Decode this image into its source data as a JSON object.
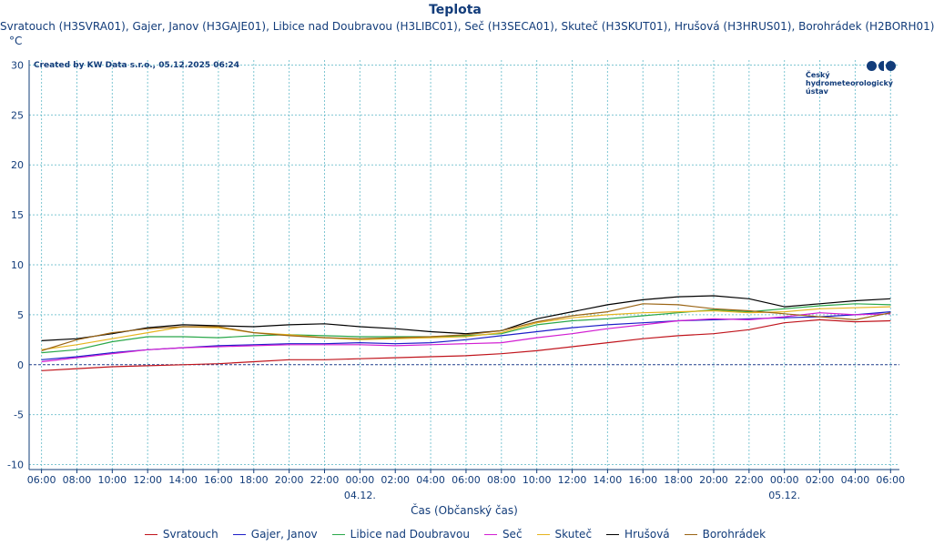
{
  "chart_data": {
    "type": "line",
    "title": "Teplota",
    "subtitle": "Svratouch (H3SVRA01), Gajer, Janov (H3GAJE01), Libice nad Doubravou (H3LIBC01), Seč (H3SECA01), Skuteč (H3SKUT01), Hrušová (H3HRUS01), Borohrádek (H2BORH01)",
    "ylabel": "°C",
    "xlabel": "Čas (Občanský čas)",
    "ylim": [
      -10.5,
      30.5
    ],
    "xlim": [
      -0.7,
      48.5
    ],
    "yticks": [
      30,
      25,
      20,
      15,
      10,
      5,
      0,
      -5,
      -10
    ],
    "xticks": [
      {
        "t": 0,
        "label": "06:00"
      },
      {
        "t": 2,
        "label": "08:00"
      },
      {
        "t": 4,
        "label": "10:00"
      },
      {
        "t": 6,
        "label": "12:00"
      },
      {
        "t": 8,
        "label": "14:00"
      },
      {
        "t": 10,
        "label": "16:00"
      },
      {
        "t": 12,
        "label": "18:00"
      },
      {
        "t": 14,
        "label": "20:00"
      },
      {
        "t": 16,
        "label": "22:00"
      },
      {
        "t": 18,
        "label": "00:00"
      },
      {
        "t": 20,
        "label": "02:00"
      },
      {
        "t": 22,
        "label": "04:00"
      },
      {
        "t": 24,
        "label": "06:00"
      },
      {
        "t": 26,
        "label": "08:00"
      },
      {
        "t": 28,
        "label": "10:00"
      },
      {
        "t": 30,
        "label": "12:00"
      },
      {
        "t": 32,
        "label": "14:00"
      },
      {
        "t": 34,
        "label": "16:00"
      },
      {
        "t": 36,
        "label": "18:00"
      },
      {
        "t": 38,
        "label": "20:00"
      },
      {
        "t": 40,
        "label": "22:00"
      },
      {
        "t": 42,
        "label": "00:00"
      },
      {
        "t": 44,
        "label": "02:00"
      },
      {
        "t": 46,
        "label": "04:00"
      },
      {
        "t": 48,
        "label": "06:00"
      }
    ],
    "date_labels": [
      {
        "t": 18,
        "label": "04.12."
      },
      {
        "t": 42,
        "label": "05.12."
      }
    ],
    "grid": true,
    "legend_position": "bottom",
    "zero_line": true,
    "series": [
      {
        "name": "Svratouch",
        "color": "#c0141c",
        "x": [
          0,
          2,
          4,
          6,
          8,
          10,
          12,
          14,
          16,
          18,
          20,
          22,
          24,
          26,
          28,
          30,
          32,
          34,
          36,
          38,
          40,
          42,
          44,
          46,
          48
        ],
        "y": [
          -0.6,
          -0.4,
          -0.2,
          -0.1,
          0.0,
          0.1,
          0.3,
          0.5,
          0.5,
          0.6,
          0.7,
          0.8,
          0.9,
          1.1,
          1.4,
          1.8,
          2.2,
          2.6,
          2.9,
          3.1,
          3.5,
          4.2,
          4.5,
          4.3,
          4.4
        ]
      },
      {
        "name": "Gajer, Janov",
        "color": "#1e1ec8",
        "x": [
          0,
          2,
          4,
          6,
          8,
          10,
          12,
          14,
          16,
          18,
          20,
          22,
          24,
          26,
          28,
          30,
          32,
          34,
          36,
          38,
          40,
          42,
          44,
          46,
          48
        ],
        "y": [
          0.5,
          0.8,
          1.2,
          1.5,
          1.7,
          1.9,
          2.0,
          2.1,
          2.1,
          2.2,
          2.1,
          2.2,
          2.5,
          2.9,
          3.3,
          3.7,
          4.0,
          4.2,
          4.4,
          4.5,
          4.6,
          4.7,
          4.8,
          5.0,
          5.3
        ]
      },
      {
        "name": "Libice nad Doubravou",
        "color": "#2aa84a",
        "x": [
          0,
          2,
          4,
          6,
          8,
          10,
          12,
          14,
          16,
          18,
          20,
          22,
          24,
          26,
          28,
          30,
          32,
          34,
          36,
          38,
          40,
          42,
          44,
          46,
          48
        ],
        "y": [
          1.2,
          1.5,
          2.3,
          2.8,
          2.8,
          2.7,
          2.9,
          3.0,
          2.9,
          2.8,
          2.8,
          2.8,
          2.9,
          3.1,
          4.0,
          4.4,
          4.6,
          4.9,
          5.2,
          5.5,
          5.3,
          5.6,
          5.9,
          6.1,
          6.0
        ]
      },
      {
        "name": "Seč",
        "color": "#d21ed2",
        "x": [
          0,
          2,
          4,
          6,
          8,
          10,
          12,
          14,
          16,
          18,
          20,
          22,
          24,
          26,
          28,
          30,
          32,
          34,
          36,
          38,
          40,
          42,
          44,
          46,
          48
        ],
        "y": [
          0.3,
          0.7,
          1.1,
          1.5,
          1.7,
          1.8,
          1.9,
          2.0,
          2.0,
          2.0,
          1.9,
          2.0,
          2.1,
          2.2,
          2.7,
          3.1,
          3.6,
          4.0,
          4.4,
          4.6,
          4.5,
          4.8,
          5.2,
          5.0,
          5.1
        ]
      },
      {
        "name": "Skuteč",
        "color": "#e6b41e",
        "x": [
          0,
          2,
          4,
          6,
          8,
          10,
          12,
          14,
          16,
          18,
          20,
          22,
          24,
          26,
          28,
          30,
          32,
          34,
          36,
          38,
          40,
          42,
          44,
          46,
          48
        ],
        "y": [
          1.5,
          2.0,
          2.6,
          3.2,
          3.8,
          3.7,
          3.2,
          3.0,
          2.7,
          2.5,
          2.6,
          2.7,
          2.8,
          3.2,
          4.2,
          4.7,
          5.0,
          5.2,
          5.3,
          5.4,
          5.2,
          5.3,
          5.6,
          5.7,
          5.8
        ]
      },
      {
        "name": "Hrušová",
        "color": "#000000",
        "x": [
          0,
          2,
          4,
          6,
          8,
          10,
          12,
          14,
          16,
          18,
          20,
          22,
          24,
          26,
          28,
          30,
          32,
          34,
          36,
          38,
          40,
          42,
          44,
          46,
          48
        ],
        "y": [
          2.4,
          2.6,
          3.1,
          3.7,
          4.0,
          3.9,
          3.8,
          4.0,
          4.1,
          3.8,
          3.6,
          3.3,
          3.1,
          3.4,
          4.6,
          5.3,
          6.0,
          6.5,
          6.8,
          6.9,
          6.6,
          5.8,
          6.1,
          6.4,
          6.6
        ]
      },
      {
        "name": "Borohrádek",
        "color": "#9a6414",
        "x": [
          0,
          2,
          4,
          6,
          8,
          10,
          12,
          14,
          16,
          18,
          20,
          22,
          24,
          26,
          28,
          30,
          32,
          34,
          36,
          38,
          40,
          42,
          44,
          46,
          48
        ],
        "y": [
          1.4,
          2.5,
          3.2,
          3.6,
          3.8,
          3.8,
          3.2,
          2.9,
          2.7,
          2.6,
          2.7,
          2.8,
          3.0,
          3.4,
          4.3,
          4.9,
          5.3,
          6.1,
          6.0,
          5.6,
          5.4,
          5.1,
          4.8,
          4.5,
          5.2
        ]
      }
    ]
  },
  "credit": "Created by KW Data s.r.o., 05.12.2025 06:24",
  "logo": {
    "text": "Český\nhydrometeorologický\nústav",
    "color": "#123c7a"
  },
  "colors": {
    "axis_text": "#123c7a",
    "grid": "#5fb8c8",
    "zero_line": "#1e3c8c"
  }
}
